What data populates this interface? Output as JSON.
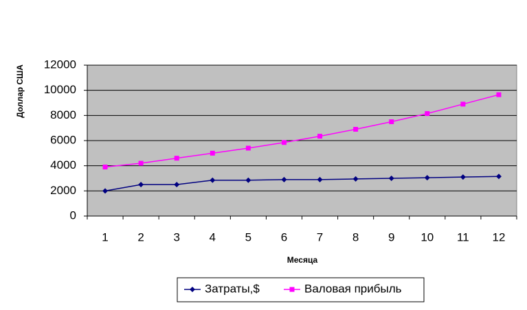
{
  "chart_data": {
    "type": "line",
    "x_label": "Месяца",
    "y_label": "Доллар США",
    "categories": [
      "1",
      "2",
      "3",
      "4",
      "5",
      "6",
      "7",
      "8",
      "9",
      "10",
      "11",
      "12"
    ],
    "series": [
      {
        "name": "Затраты,$",
        "color": "#000080",
        "marker": "diamond",
        "values": [
          2000,
          2500,
          2500,
          2850,
          2850,
          2900,
          2900,
          2950,
          3000,
          3050,
          3100,
          3150
        ]
      },
      {
        "name": "Валовая прибыль",
        "color": "#ff00ff",
        "marker": "square",
        "values": [
          3900,
          4200,
          4600,
          5000,
          5400,
          5850,
          6350,
          6900,
          7500,
          8150,
          8900,
          9650
        ]
      }
    ],
    "ylim": [
      0,
      12000
    ],
    "yticks": [
      0,
      2000,
      4000,
      6000,
      8000,
      10000,
      12000
    ],
    "grid": true
  }
}
